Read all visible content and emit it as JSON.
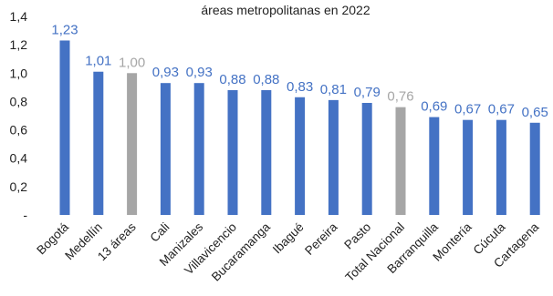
{
  "chart_data": {
    "type": "bar",
    "title_lines": [
      "áreas metropolitanas en 2022"
    ],
    "xlabel": "",
    "ylabel": "",
    "ylim": [
      0,
      1.4
    ],
    "yticks": [
      "-",
      "0,2",
      "0,4",
      "0,6",
      "0,8",
      "1,0",
      "1,2",
      "1,4"
    ],
    "grid": false,
    "legend": "none",
    "categories": [
      "Bogotá",
      "Medellín",
      "13 áreas",
      "Cali",
      "Manizales",
      "Villavicencio",
      "Bucaramanga",
      "Ibagué",
      "Pereira",
      "Pasto",
      "Total Nacional",
      "Barranquilla",
      "Montería",
      "Cúcuta",
      "Cartagena"
    ],
    "values": [
      1.23,
      1.01,
      1.0,
      0.93,
      0.93,
      0.88,
      0.88,
      0.83,
      0.81,
      0.79,
      0.76,
      0.69,
      0.67,
      0.67,
      0.65
    ],
    "value_labels": [
      "1,23",
      "1,01",
      "1,00",
      "0,93",
      "0,93",
      "0,88",
      "0,88",
      "0,83",
      "0,81",
      "0,79",
      "0,76",
      "0,69",
      "0,67",
      "0,67",
      "0,65"
    ],
    "highlighted": [
      "13 áreas",
      "Total Nacional"
    ],
    "colors": {
      "bar": "#4472c4",
      "bar_highlight": "#a6a6a6",
      "label": "#4472c4",
      "label_highlight": "#a6a6a6",
      "axis": "#222222"
    }
  }
}
